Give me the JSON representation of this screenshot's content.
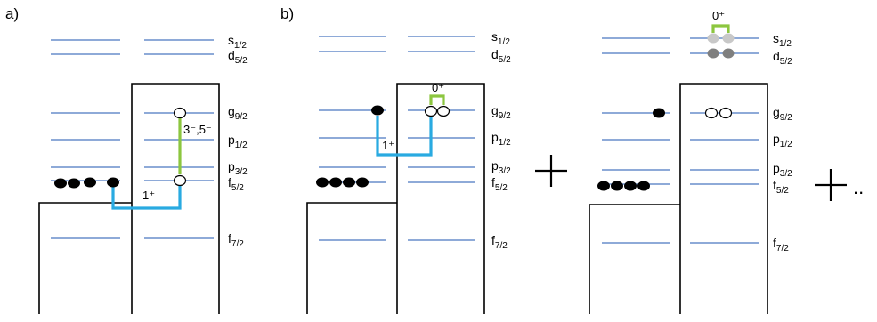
{
  "panels": [
    {
      "tag": "a)"
    },
    {
      "tag": "b)"
    },
    {
      "tag": ""
    }
  ],
  "levels": {
    "s12": {
      "name": "s",
      "sub": "1/2"
    },
    "d52": {
      "name": "d",
      "sub": "5/2"
    },
    "g92": {
      "name": "g",
      "sub": "9/2"
    },
    "p12": {
      "name": "p",
      "sub": "1/2"
    },
    "p32": {
      "name": "p",
      "sub": "3/2"
    },
    "f52": {
      "name": "f",
      "sub": "5/2"
    },
    "f72": {
      "name": "f",
      "sub": "7/2"
    }
  },
  "transitions": {
    "a_gt": "1⁺",
    "a_green": "3⁻,5⁻",
    "b_gt": "1⁺",
    "b_pair": "0⁺",
    "c_pair": "0⁺"
  },
  "operators": {
    "plus": "+",
    "ellipsis": ".."
  },
  "colors": {
    "level_line": "#4a78c0",
    "gt_transition": "#29aae1",
    "pair_transition": "#8cc63f",
    "pair_light": "#c8c8c8",
    "pair_dark": "#7f7f7f"
  }
}
